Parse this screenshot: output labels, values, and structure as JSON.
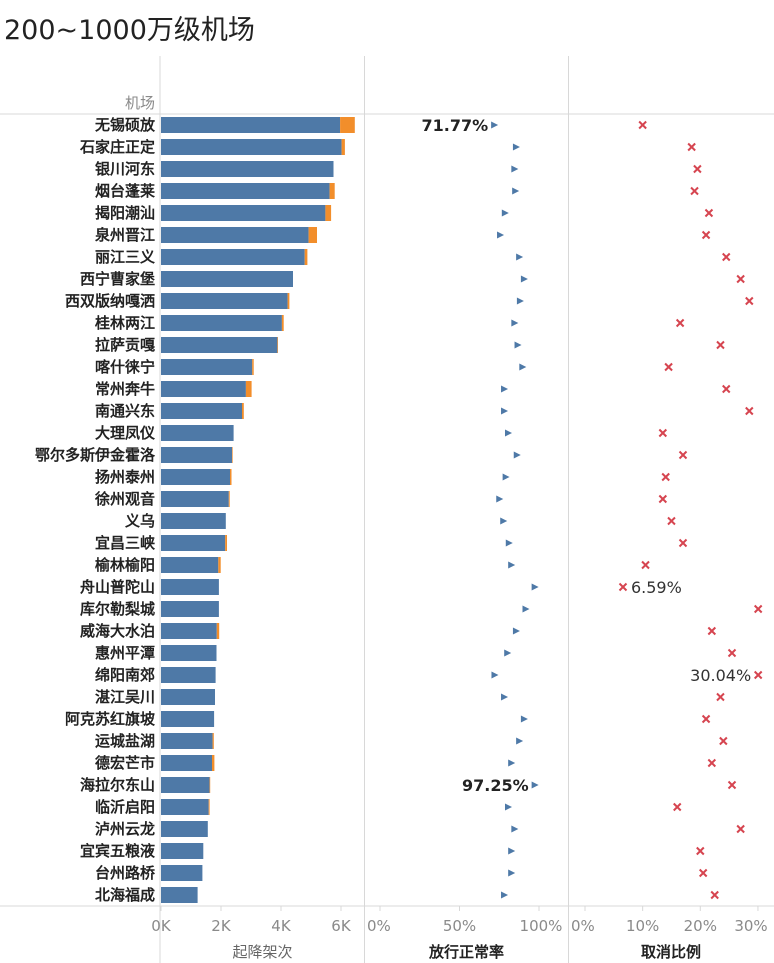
{
  "page": {
    "title": "200~1000万级机场"
  },
  "colors": {
    "bar_main": "#4e79a7",
    "bar_extra": "#f28e2b",
    "marker_rate": "#4e79a7",
    "marker_cancel": "#d64550",
    "grid": "#d8d8d8",
    "label_text": "#222222",
    "tick_text": "#8a8a8a"
  },
  "chart_data": {
    "type": "bar",
    "row_header": "机场",
    "categories": [
      "无锡硕放",
      "石家庄正定",
      "银川河东",
      "烟台蓬莱",
      "揭阳潮汕",
      "泉州晋江",
      "丽江三义",
      "西宁曹家堡",
      "西双版纳嘎洒",
      "桂林两江",
      "拉萨贡嘎",
      "喀什徕宁",
      "常州奔牛",
      "南通兴东",
      "大理凤仪",
      "鄂尔多斯伊金霍洛",
      "扬州泰州",
      "徐州观音",
      "义乌",
      "宜昌三峡",
      "榆林榆阳",
      "舟山普陀山",
      "库尔勒梨城",
      "威海大水泊",
      "惠州平潭",
      "绵阳南郊",
      "湛江吴川",
      "阿克苏红旗坡",
      "运城盐湖",
      "德宏芒市",
      "海拉尔东山",
      "临沂启阳",
      "泸州云龙",
      "宜宾五粮液",
      "台州路桥",
      "北海福成"
    ],
    "panels": [
      {
        "id": "movements",
        "axis_title": "起降架次",
        "tick_labels": [
          "0K",
          "2K",
          "4K",
          "6K"
        ],
        "tick_values": [
          0,
          2000,
          4000,
          6000
        ],
        "xlim": [
          0,
          6500
        ],
        "series": [
          {
            "values": [
              5970,
              6020,
              5750,
              5620,
              5480,
              4920,
              4790,
              4400,
              4220,
              4030,
              3880,
              3040,
              2830,
              2700,
              2420,
              2370,
              2300,
              2260,
              2160,
              2140,
              1910,
              1930,
              1930,
              1860,
              1850,
              1820,
              1800,
              1770,
              1720,
              1700,
              1620,
              1590,
              1560,
              1410,
              1380,
              1220
            ]
          },
          {
            "values": [
              490,
              110,
              0,
              170,
              190,
              280,
              90,
              0,
              60,
              60,
              20,
              50,
              190,
              60,
              0,
              20,
              50,
              30,
              0,
              60,
              80,
              0,
              0,
              80,
              0,
              0,
              0,
              0,
              40,
              80,
              20,
              30,
              0,
              0,
              0,
              0
            ]
          }
        ]
      },
      {
        "id": "on_time_rate",
        "axis_title": "放行正常率",
        "tick_labels": [
          "0%",
          "50%",
          "100%"
        ],
        "tick_values": [
          0,
          50,
          100
        ],
        "xlim": [
          0,
          100
        ],
        "values": [
          71.77,
          85.5,
          84.5,
          85.0,
          78.5,
          75.5,
          87.5,
          90.5,
          88.0,
          84.5,
          86.5,
          89.5,
          78.0,
          78.0,
          80.5,
          86.0,
          79.0,
          75.0,
          77.5,
          81.0,
          82.5,
          97.25,
          91.5,
          85.5,
          80.0,
          72.0,
          78.0,
          90.5,
          87.5,
          82.5,
          97.25,
          80.5,
          84.5,
          82.5,
          82.5,
          78.0
        ],
        "annotations": [
          {
            "category": "无锡硕放",
            "label": "71.77%"
          },
          {
            "category": "海拉尔东山",
            "label": "97.25%"
          }
        ]
      },
      {
        "id": "cancel_ratio",
        "axis_title": "取消比例",
        "tick_labels": [
          "0%",
          "10%",
          "20%",
          "30%"
        ],
        "tick_values": [
          0,
          10,
          20,
          30
        ],
        "xlim": [
          0,
          31
        ],
        "values": [
          10.0,
          18.5,
          19.5,
          19.0,
          21.5,
          21.0,
          24.5,
          27.0,
          28.5,
          16.5,
          23.5,
          14.5,
          24.5,
          28.5,
          13.5,
          17.0,
          14.0,
          13.5,
          15.0,
          17.0,
          10.5,
          6.59,
          30.04,
          22.0,
          25.5,
          30.04,
          23.5,
          21.0,
          24.0,
          22.0,
          25.5,
          16.0,
          27.0,
          20.0,
          20.5,
          22.5
        ],
        "annotations": [
          {
            "category": "舟山普陀山",
            "label": "6.59%"
          },
          {
            "category": "绵阳南郊",
            "label": "30.04%"
          }
        ]
      }
    ]
  }
}
